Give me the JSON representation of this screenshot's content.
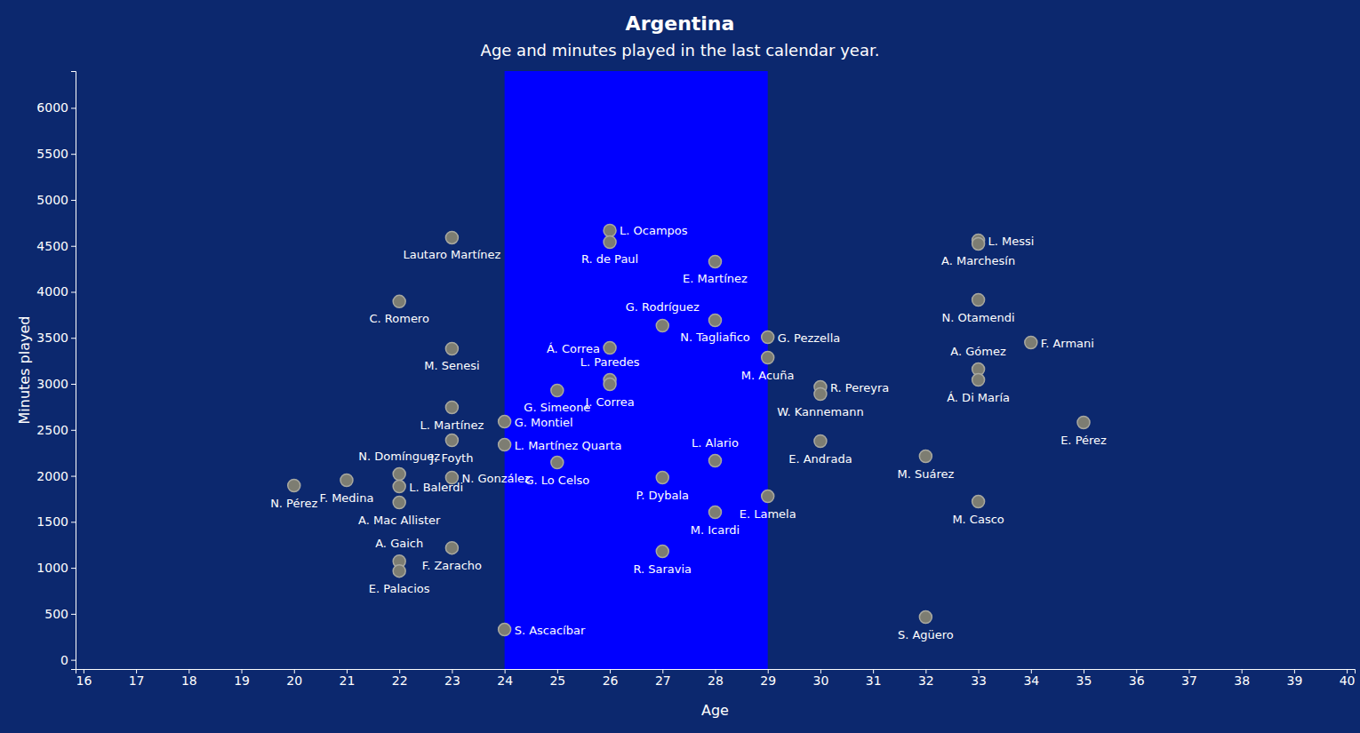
{
  "chart_data": {
    "type": "scatter",
    "title": "Argentina",
    "subtitle": "Age and minutes played in the last calendar year.",
    "x_label": "Age",
    "y_label": "Minutes played",
    "color": "#7d7d72",
    "highlight": [
      24,
      29
    ],
    "labels": [
      "Lautaro Martínez",
      "C. Romero",
      "M. Senesi",
      "L. Martínez",
      "J. Foyth",
      "N. Domínguez",
      "L. Balerdi",
      "A. Mac Allister",
      "N. González",
      "F. Medina",
      "N. Pérez",
      "A. Gaich",
      "F. Zaracho",
      "E. Palacios",
      "G. Montiel",
      "L. Martínez Quarta",
      "S. Ascacíbar",
      "G. Simeone",
      "G. Lo Celso",
      "L. Ocampos",
      "R. de Paul",
      "Á. Correa",
      "L. Paredes",
      "J. Correa",
      "G. Rodríguez",
      "P. Dybala",
      "R. Saravia",
      "E. Martínez",
      "N. Tagliafico",
      "L. Alario",
      "M. Icardi",
      "G. Pezzella",
      "M. Acuña",
      "E. Lamela",
      "R. Pereyra",
      "W. Kannemann",
      "E. Andrada",
      "M. Suárez",
      "S. Agüero",
      "L. Messi",
      "A. Marchesín",
      "N. Otamendi",
      "A. Gómez",
      "Á. Di María",
      "M. Casco",
      "F. Armani",
      "E. Pérez"
    ],
    "x": [
      23,
      22,
      23,
      23,
      23,
      22,
      22,
      22,
      23,
      21,
      20,
      22,
      23,
      22,
      24,
      24,
      24,
      25,
      25,
      26,
      26,
      26,
      26,
      26,
      27,
      27,
      27,
      28,
      28,
      28,
      28,
      29,
      29,
      29,
      30,
      30,
      30,
      32,
      32,
      33,
      33,
      33,
      33,
      33,
      33,
      34,
      35
    ],
    "values": [
      4590,
      3895,
      3382,
      2744,
      2386,
      2019,
      1884,
      1710,
      1981,
      1952,
      1894,
      1072,
      1217,
      966,
      2589,
      2338,
      329,
      2928,
      2145,
      4667,
      4541,
      3391,
      3043,
      2995,
      3633,
      1981,
      1179,
      4329,
      3691,
      2164,
      1604,
      3507,
      3285,
      1778,
      2966,
      2889,
      2377,
      2213,
      464,
      4560,
      4522,
      3913,
      3159,
      3043,
      1720,
      3449,
      2580
    ],
    "xlim": [
      15.85,
      40.15
    ],
    "ylim": [
      -100,
      6400
    ],
    "xticks": [
      16,
      17,
      18,
      19,
      20,
      21,
      22,
      23,
      24,
      25,
      26,
      27,
      28,
      29,
      30,
      31,
      32,
      33,
      34,
      35,
      36,
      37,
      38,
      39,
      40
    ],
    "yticks": [
      0,
      500,
      1000,
      1500,
      2000,
      2500,
      3000,
      3500,
      4000,
      4500,
      5000,
      5500,
      6000
    ],
    "grid": false
  }
}
